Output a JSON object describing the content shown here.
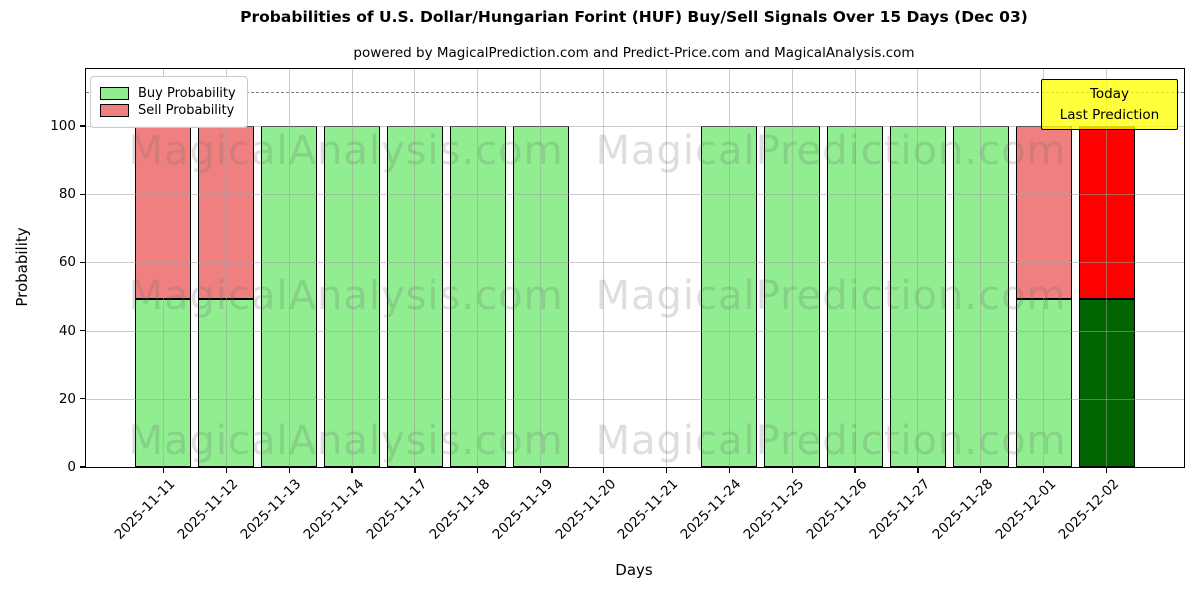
{
  "chart_data": {
    "type": "bar",
    "stacked": true,
    "title": "Probabilities of U.S. Dollar/Hungarian Forint (HUF) Buy/Sell Signals Over 15 Days (Dec 03)",
    "subtitle": "powered by MagicalPrediction.com and Predict-Price.com and MagicalAnalysis.com",
    "xlabel": "Days",
    "ylabel": "Probability",
    "ylim": [
      0,
      116.7
    ],
    "yticks": [
      0,
      20,
      40,
      60,
      80,
      100
    ],
    "grid": true,
    "dashed_guide_y": 110,
    "categories": [
      "2025-11-11",
      "2025-11-12",
      "2025-11-13",
      "2025-11-14",
      "2025-11-17",
      "2025-11-18",
      "2025-11-19",
      "2025-11-20",
      "2025-11-21",
      "2025-11-24",
      "2025-11-25",
      "2025-11-26",
      "2025-11-27",
      "2025-11-28",
      "2025-12-01",
      "2025-12-02"
    ],
    "series": [
      {
        "name": "Buy Probability",
        "color": "#90ee90",
        "values": [
          49.4,
          49.4,
          100,
          100,
          100,
          100,
          100,
          0,
          0,
          100,
          100,
          100,
          100,
          100,
          49.4,
          49.4
        ]
      },
      {
        "name": "Sell Probability",
        "color": "#f08080",
        "values": [
          50.6,
          50.6,
          0,
          0,
          0,
          0,
          0,
          0,
          0,
          0,
          0,
          0,
          0,
          0,
          50.6,
          50.6
        ]
      }
    ],
    "today_bar": {
      "index": 15,
      "buy_color": "#006400",
      "sell_color": "#ff0000"
    },
    "bar_edge_color": "#000000",
    "grid_color": "#a0a0a0",
    "legend": {
      "position": "upper-left",
      "items": [
        {
          "label": "Buy Probability",
          "color": "#90ee90"
        },
        {
          "label": "Sell Probability",
          "color": "#f08080"
        }
      ]
    },
    "annotation": {
      "line1": "Today",
      "line2": "Last Prediction",
      "bg_color": "#ffff00",
      "border_color": "#000000"
    },
    "watermarks": [
      {
        "text": "MagicalAnalysis.com",
        "side": "left"
      },
      {
        "text": "MagicalPrediction.com",
        "side": "right"
      }
    ]
  }
}
